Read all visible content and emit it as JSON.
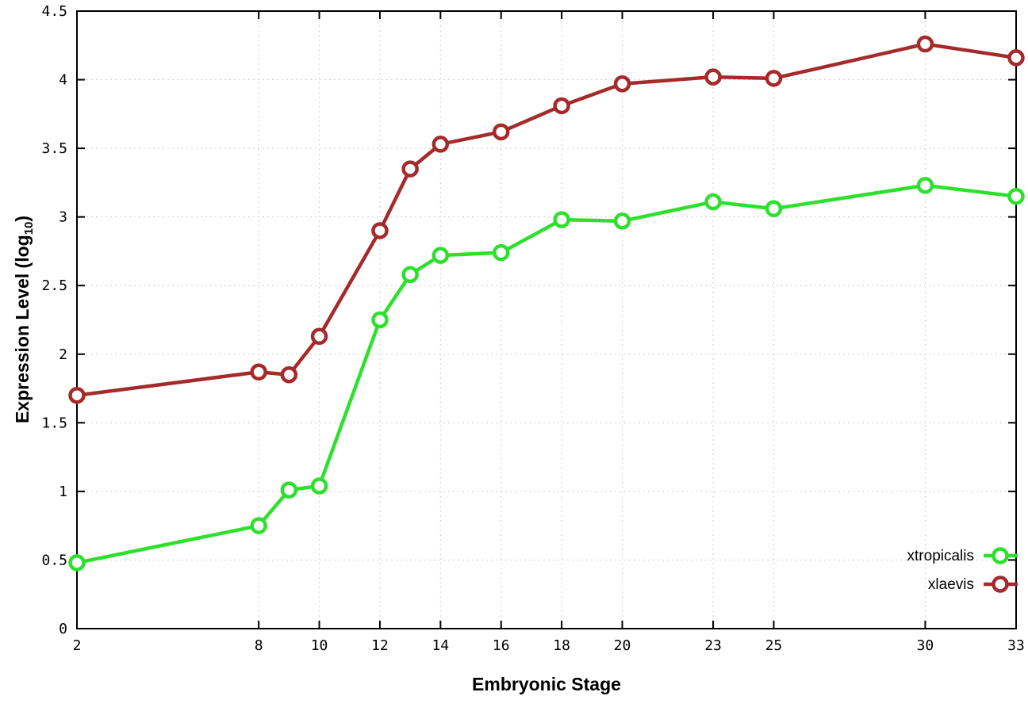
{
  "chart_data": {
    "type": "line",
    "title": "",
    "xlabel": "Embryonic Stage",
    "ylabel": "Expression Level (log10)",
    "ylabel_main": "Expression Level (log",
    "ylabel_sub": "10",
    "ylabel_end": ")",
    "xlim": [
      2,
      33
    ],
    "ylim": [
      0,
      4.5
    ],
    "xticks": [
      2,
      8,
      10,
      12,
      14,
      16,
      18,
      20,
      23,
      25,
      30,
      33
    ],
    "yticks": [
      0,
      0.5,
      1,
      1.5,
      2,
      2.5,
      3,
      3.5,
      4,
      4.5
    ],
    "grid": true,
    "legend_position": "inside-bottom-right",
    "marker": "open-circle",
    "x": [
      2,
      8,
      9,
      10,
      12,
      13,
      14,
      16,
      18,
      20,
      23,
      25,
      30,
      33
    ],
    "series": [
      {
        "name": "xtropicalis",
        "color": "#2ee02e",
        "values": [
          0.48,
          0.75,
          1.01,
          1.04,
          2.25,
          2.58,
          2.72,
          2.74,
          2.98,
          2.97,
          3.11,
          3.06,
          3.23,
          3.15
        ]
      },
      {
        "name": "xlaevis",
        "color": "#a52a2a",
        "values": [
          1.7,
          1.87,
          1.85,
          2.13,
          2.9,
          3.35,
          3.53,
          3.62,
          3.81,
          3.97,
          4.02,
          4.01,
          4.26,
          4.16
        ]
      }
    ]
  }
}
